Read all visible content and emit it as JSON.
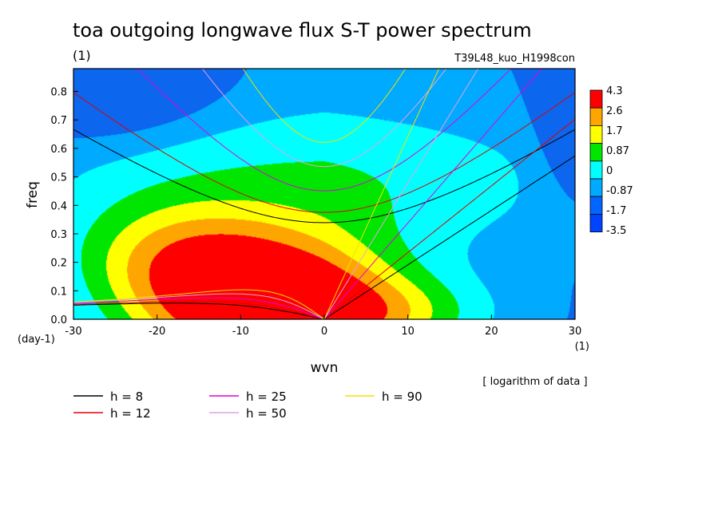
{
  "chart_data": {
    "type": "heatmap",
    "title": "toa outgoing longwave flux S-T power spectrum",
    "units": "(1)",
    "experiment": "T39L48_kuo_H1998con",
    "xlabel": "wvn",
    "ylabel": "freq",
    "x_unit": "(1)",
    "y_unit": "(day-1)",
    "xlim": [
      -30,
      30
    ],
    "ylim": [
      0,
      0.88
    ],
    "x_ticks": [
      "-30",
      "-20",
      "-10",
      "0",
      "10",
      "20",
      "30"
    ],
    "y_ticks": [
      "0.0",
      "0.1",
      "0.2",
      "0.3",
      "0.4",
      "0.5",
      "0.6",
      "0.7",
      "0.8"
    ],
    "x_tick_values": [
      -30,
      -20,
      -10,
      0,
      10,
      20,
      30
    ],
    "y_tick_values": [
      0,
      0.1,
      0.2,
      0.3,
      0.4,
      0.5,
      0.6,
      0.7,
      0.8
    ],
    "note": "[ logarithm of data ]",
    "colorbar": {
      "labels": [
        "4.3",
        "2.6",
        "1.7",
        "0.87",
        "0",
        "-0.87",
        "-1.7",
        "-3.5"
      ],
      "colors": [
        "#ff0000",
        "#ffa500",
        "#ffff00",
        "#00e600",
        "#00ffff",
        "#00aaff",
        "#0066ff",
        "#0044ff"
      ]
    },
    "field_levels": [
      -1.7,
      -0.87,
      0,
      0.87,
      1.7,
      2.6,
      3.5
    ],
    "field_colors": [
      "#0d66ee",
      "#00aaff",
      "#00ffff",
      "#00e600",
      "#ffff00",
      "#ffa500",
      "#ff0000",
      "#ff0000"
    ],
    "dispersion_curves": [
      {
        "name": "h =  8",
        "h": 8,
        "color": "#000000"
      },
      {
        "name": "h = 12",
        "h": 12,
        "color": "#e00000"
      },
      {
        "name": "h = 25",
        "h": 25,
        "color": "#dd00dd"
      },
      {
        "name": "h = 50",
        "h": 50,
        "color": "#e5a0e5"
      },
      {
        "name": "h = 90",
        "h": 90,
        "color": "#f0e000"
      }
    ]
  }
}
